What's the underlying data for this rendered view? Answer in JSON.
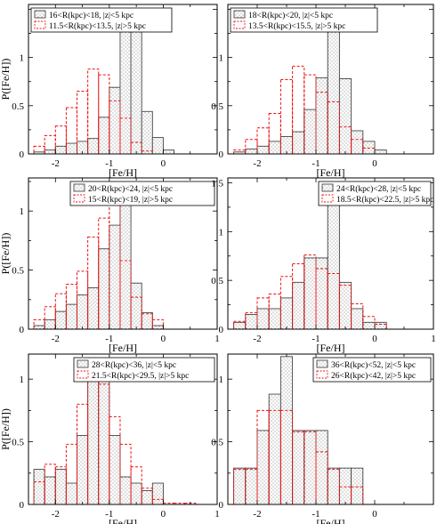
{
  "chart_data": [
    {
      "type": "bar",
      "xlabel": "[Fe/H]",
      "ylabel": "P([Fe/H])",
      "xlim": [
        -2.5,
        1.0
      ],
      "ylim": [
        0,
        1.55
      ],
      "xticks": [
        -2,
        -1,
        0
      ],
      "yticks": [
        0,
        0.5,
        1
      ],
      "bin_width": 0.2,
      "legend_position": "top-left",
      "series": [
        {
          "name": "16<R(kpc)<18, |z|<5 kpc",
          "style": "dotted-gray",
          "bins": [
            -2.4,
            -2.2,
            -2.0,
            -1.8,
            -1.6,
            -1.4,
            -1.2,
            -1.0,
            -0.8,
            -0.6,
            -0.4,
            -0.2,
            0.0
          ],
          "values": [
            0.02,
            0.04,
            0.08,
            0.11,
            0.13,
            0.16,
            0.38,
            0.69,
            1.36,
            1.51,
            0.44,
            0.17,
            0.04
          ]
        },
        {
          "name": "11.5<R(kpc)<13.5, |z|>5 kpc",
          "style": "dashed-red",
          "bins": [
            -2.4,
            -2.2,
            -2.0,
            -1.8,
            -1.6,
            -1.4,
            -1.2,
            -1.0,
            -0.8,
            -0.6,
            -0.4
          ],
          "values": [
            0.08,
            0.19,
            0.29,
            0.48,
            0.65,
            0.88,
            0.82,
            0.55,
            0.37,
            0.12,
            0.03
          ]
        }
      ]
    },
    {
      "type": "bar",
      "xlabel": "[Fe/H]",
      "ylabel": "",
      "xlim": [
        -2.5,
        1.0
      ],
      "ylim": [
        0,
        1.55
      ],
      "xticks": [
        -2,
        -1,
        0
      ],
      "yticks": [
        0,
        0.5,
        1
      ],
      "bin_width": 0.2,
      "legend_position": "top-left",
      "series": [
        {
          "name": "18<R(kpc)<20, |z|<5 kpc",
          "style": "dotted-gray",
          "bins": [
            -2.4,
            -2.2,
            -2.0,
            -1.8,
            -1.6,
            -1.4,
            -1.2,
            -1.0,
            -0.8,
            -0.6,
            -0.4,
            -0.2,
            0.0
          ],
          "values": [
            0.02,
            0.05,
            0.08,
            0.13,
            0.18,
            0.23,
            0.46,
            0.79,
            1.48,
            0.78,
            0.24,
            0.13,
            0.04
          ]
        },
        {
          "name": "13.5<R(kpc)<15.5, |z|>5 kpc",
          "style": "dashed-red",
          "bins": [
            -2.4,
            -2.2,
            -2.0,
            -1.8,
            -1.6,
            -1.4,
            -1.2,
            -1.0,
            -0.8,
            -0.6,
            -0.4,
            -0.2
          ],
          "values": [
            0.04,
            0.15,
            0.27,
            0.42,
            0.77,
            0.91,
            0.82,
            0.64,
            0.54,
            0.28,
            0.15,
            0.06
          ]
        }
      ]
    },
    {
      "type": "bar",
      "xlabel": "[Fe/H]",
      "ylabel": "P([Fe/H])",
      "xlim": [
        -2.5,
        1.0
      ],
      "ylim": [
        0,
        1.28
      ],
      "xticks": [
        -2,
        -1,
        0,
        1
      ],
      "yticks": [
        0,
        0.5,
        1
      ],
      "bin_width": 0.2,
      "legend_position": "top-right",
      "series": [
        {
          "name": "20<R(kpc)<24, |z|<5 kpc",
          "style": "dotted-gray",
          "bins": [
            -2.4,
            -2.2,
            -2.0,
            -1.8,
            -1.6,
            -1.4,
            -1.2,
            -1.0,
            -0.8,
            -0.6,
            -0.4,
            -0.2
          ],
          "values": [
            0.03,
            0.08,
            0.15,
            0.21,
            0.29,
            0.35,
            0.68,
            0.88,
            1.22,
            0.39,
            0.14,
            0.03
          ]
        },
        {
          "name": "15<R(kpc)<19, |z|>5 kpc",
          "style": "dashed-red",
          "bins": [
            -2.4,
            -2.2,
            -2.0,
            -1.8,
            -1.6,
            -1.4,
            -1.2,
            -1.0,
            -0.8,
            -0.6,
            -0.4,
            -0.2
          ],
          "values": [
            0.08,
            0.19,
            0.3,
            0.38,
            0.49,
            0.78,
            0.94,
            1.18,
            0.58,
            0.27,
            0.13,
            0.08
          ]
        }
      ]
    },
    {
      "type": "bar",
      "xlabel": "[Fe/H]",
      "ylabel": "",
      "xlim": [
        -2.5,
        1.0
      ],
      "ylim": [
        0,
        1.55
      ],
      "xticks": [
        -2,
        -1,
        0,
        1
      ],
      "yticks": [
        0,
        0.5,
        1,
        1.5
      ],
      "bin_width": 0.2,
      "legend_position": "top-right",
      "series": [
        {
          "name": "24<R(kpc)<28, |z|<5 kpc",
          "style": "dotted-gray",
          "bins": [
            -2.4,
            -2.2,
            -2.0,
            -1.8,
            -1.6,
            -1.4,
            -1.2,
            -1.0,
            -0.8,
            -0.6,
            -0.4,
            -0.2,
            0.0
          ],
          "values": [
            0.07,
            0.15,
            0.21,
            0.21,
            0.32,
            0.48,
            0.73,
            0.73,
            1.46,
            0.48,
            0.21,
            0.07,
            0.07
          ]
        },
        {
          "name": "18.5<R(kpc)<22.5, |z|>5 kpc",
          "style": "dashed-red",
          "bins": [
            -2.4,
            -2.2,
            -2.0,
            -1.8,
            -1.6,
            -1.4,
            -1.2,
            -1.0,
            -0.8,
            -0.6,
            -0.4,
            -0.2,
            0.0
          ],
          "values": [
            0.08,
            0.17,
            0.32,
            0.36,
            0.54,
            0.67,
            0.76,
            0.62,
            0.57,
            0.45,
            0.26,
            0.13,
            0.05
          ]
        }
      ]
    },
    {
      "type": "bar",
      "xlabel": "[Fe/H]",
      "ylabel": "P([Fe/H])",
      "xlim": [
        -2.5,
        1.0
      ],
      "ylim": [
        0,
        1.2
      ],
      "xticks": [
        -2,
        -1,
        0,
        1
      ],
      "yticks": [
        0,
        0.5,
        1
      ],
      "bin_width": 0.2,
      "legend_position": "top-right",
      "series": [
        {
          "name": "28<R(kpc)<36, |z|<5 kpc",
          "style": "dotted-gray",
          "bins": [
            -2.4,
            -2.2,
            -2.0,
            -1.8,
            -1.6,
            -1.4,
            -1.2,
            -1.0,
            -0.8,
            -0.6,
            -0.4,
            -0.2
          ],
          "values": [
            0.28,
            0.22,
            0.28,
            0.17,
            0.55,
            1.11,
            1.11,
            0.55,
            0.22,
            0.17,
            0.11,
            0.17
          ]
        },
        {
          "name": "21.5<R(kpc)<29.5, |z|>5 kpc",
          "style": "dashed-red",
          "bins": [
            -2.4,
            -2.2,
            -2.0,
            -1.8,
            -1.6,
            -1.4,
            -1.2,
            -1.0,
            -0.8,
            -0.6,
            -0.4,
            -0.2,
            0.0,
            0.2,
            0.4
          ],
          "values": [
            0.18,
            0.32,
            0.3,
            0.48,
            0.8,
            1.0,
            0.96,
            0.7,
            0.48,
            0.3,
            0.13,
            0.04,
            0.01,
            0.01,
            0.01
          ]
        }
      ]
    },
    {
      "type": "bar",
      "xlabel": "[Fe/H]",
      "ylabel": "",
      "xlim": [
        -2.5,
        1.0
      ],
      "ylim": [
        0,
        1.2
      ],
      "xticks": [
        -2,
        -1,
        0
      ],
      "yticks": [
        0,
        0.5,
        1
      ],
      "bin_width": 0.2,
      "legend_position": "top-right",
      "series": [
        {
          "name": "36<R(kpc)<52, |z|<5 kpc",
          "style": "dotted-gray",
          "bins": [
            -2.4,
            -2.2,
            -2.0,
            -1.8,
            -1.6,
            -1.4,
            -1.2,
            -1.0,
            -0.8,
            -0.6,
            -0.4
          ],
          "values": [
            0.29,
            0.29,
            0.59,
            0.88,
            1.18,
            0.59,
            0.59,
            0.59,
            0.29,
            0.29,
            0.29
          ]
        },
        {
          "name": "26<R(kpc)<42, |z|>5 kpc",
          "style": "dashed-red",
          "bins": [
            -2.4,
            -2.2,
            -2.0,
            -1.8,
            -1.6,
            -1.4,
            -1.2,
            -1.0,
            -0.8,
            -0.6,
            -0.4
          ],
          "values": [
            0.28,
            0.28,
            0.75,
            0.75,
            0.75,
            0.58,
            0.58,
            0.42,
            0.28,
            0.14,
            0.14
          ]
        }
      ]
    }
  ],
  "colors": {
    "series_gray": "#444444",
    "series_red": "#ee1111",
    "hatch_dot": "#666666"
  }
}
